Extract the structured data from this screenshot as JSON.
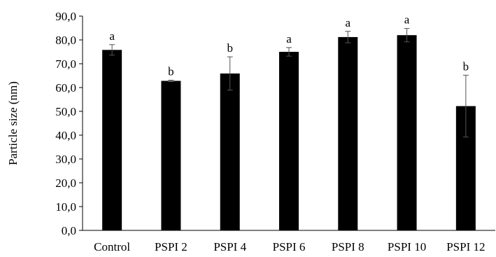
{
  "chart_data": {
    "type": "bar",
    "ylabel": "Particle size (nm)",
    "xlabel": "",
    "ylim": [
      0,
      90
    ],
    "y_ticks": [
      "0,0",
      "10,0",
      "20,0",
      "30,0",
      "40,0",
      "50,0",
      "60,0",
      "70,0",
      "80,0",
      "90,0"
    ],
    "categories": [
      "Control",
      "PSPI 2",
      "PSPI 4",
      "PSPI 6",
      "PSPI 8",
      "PSPI 10",
      "PSPI 12"
    ],
    "values": [
      75.8,
      62.8,
      65.9,
      75.0,
      81.2,
      82.0,
      52.2
    ],
    "errors": [
      2.2,
      0.3,
      7.0,
      1.8,
      2.4,
      2.8,
      13.0
    ],
    "significance_letters": [
      "a",
      "b",
      "b",
      "a",
      "a",
      "a",
      "b"
    ],
    "bar_color": "#000000",
    "grid": false,
    "legend": "none"
  }
}
